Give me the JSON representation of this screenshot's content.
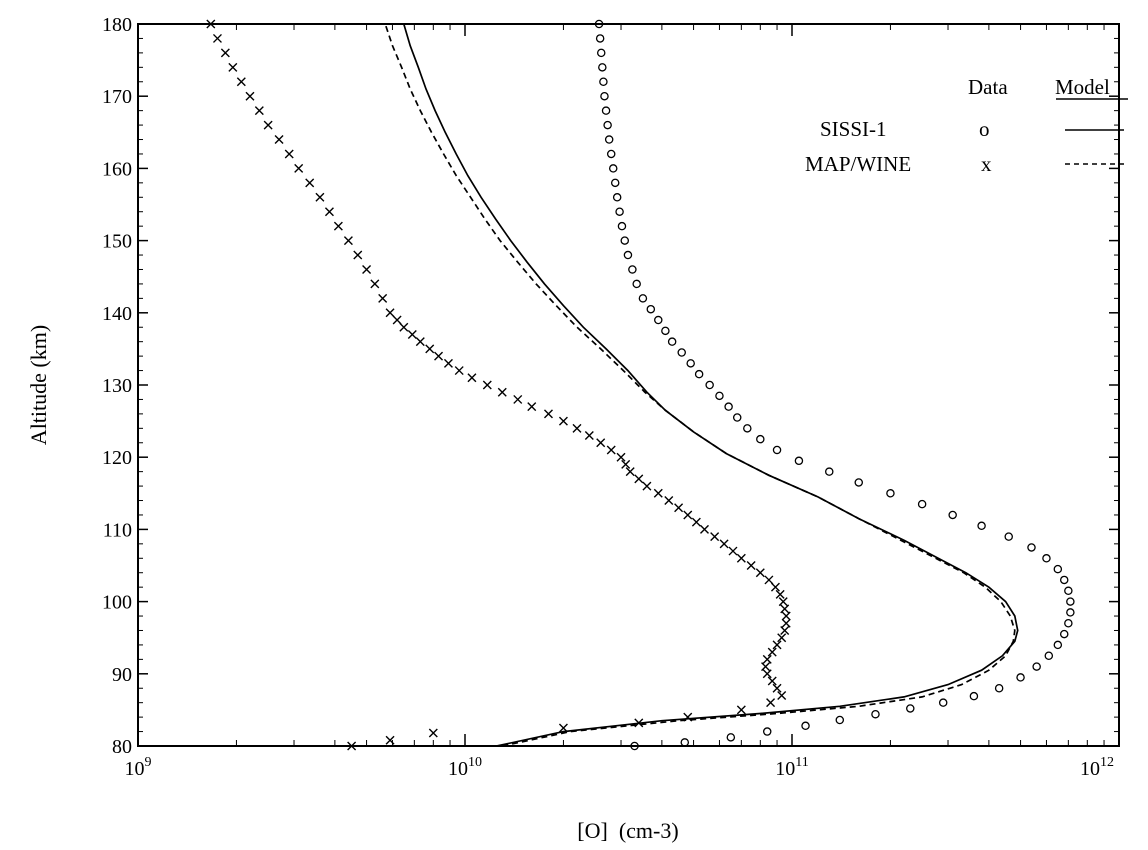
{
  "chart_data": {
    "type": "line",
    "xlabel": "[O]  (cm-3)",
    "ylabel": "Altitude (km)",
    "xscale": "log",
    "xlim": [
      1000000000.0,
      1000000000000.0
    ],
    "ylim": [
      80,
      180
    ],
    "x_tick_labels": [
      {
        "base": "10",
        "exp": "9"
      },
      {
        "base": "10",
        "exp": "10"
      },
      {
        "base": "10",
        "exp": "11"
      },
      {
        "base": "10",
        "exp": "12"
      }
    ],
    "y_ticks": [
      80,
      90,
      100,
      110,
      120,
      130,
      140,
      150,
      160,
      170,
      180
    ],
    "grid": false,
    "legend": {
      "placement": "top-right",
      "header_data": "Data",
      "header_model": "Model",
      "entries": [
        {
          "name": "SISSI-1",
          "data_symbol": "o",
          "model_style": "solid"
        },
        {
          "name": "MAP/WINE",
          "data_symbol": "x",
          "model_style": "dashed"
        }
      ]
    },
    "series": [
      {
        "name": "SISSI-1",
        "kind": "data",
        "marker": "o",
        "points": [
          [
            33000000000.0,
            80
          ],
          [
            47000000000.0,
            80.5
          ],
          [
            65000000000.0,
            81.2
          ],
          [
            84000000000.0,
            82
          ],
          [
            110000000000.0,
            82.8
          ],
          [
            140000000000.0,
            83.6
          ],
          [
            180000000000.0,
            84.4
          ],
          [
            230000000000.0,
            85.2
          ],
          [
            290000000000.0,
            86
          ],
          [
            360000000000.0,
            86.9
          ],
          [
            430000000000.0,
            88
          ],
          [
            500000000000.0,
            89.5
          ],
          [
            560000000000.0,
            91
          ],
          [
            610000000000.0,
            92.5
          ],
          [
            650000000000.0,
            94
          ],
          [
            680000000000.0,
            95.5
          ],
          [
            700000000000.0,
            97
          ],
          [
            710000000000.0,
            98.5
          ],
          [
            710000000000.0,
            100
          ],
          [
            700000000000.0,
            101.5
          ],
          [
            680000000000.0,
            103
          ],
          [
            650000000000.0,
            104.5
          ],
          [
            600000000000.0,
            106
          ],
          [
            540000000000.0,
            107.5
          ],
          [
            460000000000.0,
            109
          ],
          [
            380000000000.0,
            110.5
          ],
          [
            310000000000.0,
            112
          ],
          [
            250000000000.0,
            113.5
          ],
          [
            200000000000.0,
            115
          ],
          [
            160000000000.0,
            116.5
          ],
          [
            130000000000.0,
            118
          ],
          [
            105000000000.0,
            119.5
          ],
          [
            90000000000.0,
            121
          ],
          [
            80000000000.0,
            122.5
          ],
          [
            73000000000.0,
            124
          ],
          [
            68000000000.0,
            125.5
          ],
          [
            64000000000.0,
            127
          ],
          [
            60000000000.0,
            128.5
          ],
          [
            56000000000.0,
            130
          ],
          [
            52000000000.0,
            131.5
          ],
          [
            49000000000.0,
            133
          ],
          [
            46000000000.0,
            134.5
          ],
          [
            43000000000.0,
            136
          ],
          [
            41000000000.0,
            137.5
          ],
          [
            39000000000.0,
            139
          ],
          [
            37000000000.0,
            140.5
          ],
          [
            35000000000.0,
            142
          ],
          [
            33500000000.0,
            144
          ],
          [
            32500000000.0,
            146
          ],
          [
            31500000000.0,
            148
          ],
          [
            30800000000.0,
            150
          ],
          [
            30200000000.0,
            152
          ],
          [
            29700000000.0,
            154
          ],
          [
            29200000000.0,
            156
          ],
          [
            28800000000.0,
            158
          ],
          [
            28400000000.0,
            160
          ],
          [
            28000000000.0,
            162
          ],
          [
            27600000000.0,
            164
          ],
          [
            27300000000.0,
            166
          ],
          [
            27000000000.0,
            168
          ],
          [
            26700000000.0,
            170
          ],
          [
            26500000000.0,
            172
          ],
          [
            26300000000.0,
            174
          ],
          [
            26100000000.0,
            176
          ],
          [
            25900000000.0,
            178
          ],
          [
            25700000000.0,
            180
          ]
        ]
      },
      {
        "name": "MAP/WINE",
        "kind": "data",
        "marker": "x",
        "points": [
          [
            4500000000.0,
            80
          ],
          [
            5900000000.0,
            80.8
          ],
          [
            8000000000.0,
            81.8
          ],
          [
            20000000000.0,
            82.5
          ],
          [
            34000000000.0,
            83.2
          ],
          [
            48000000000.0,
            84
          ],
          [
            70000000000.0,
            85
          ],
          [
            86000000000.0,
            86
          ],
          [
            93000000000.0,
            87
          ],
          [
            90000000000.0,
            88
          ],
          [
            87000000000.0,
            89
          ],
          [
            84000000000.0,
            90
          ],
          [
            83000000000.0,
            91
          ],
          [
            84000000000.0,
            92
          ],
          [
            87000000000.0,
            93
          ],
          [
            90000000000.0,
            94
          ],
          [
            93000000000.0,
            95
          ],
          [
            95000000000.0,
            96
          ],
          [
            96000000000.0,
            97
          ],
          [
            96000000000.0,
            98
          ],
          [
            95000000000.0,
            99
          ],
          [
            94000000000.0,
            100
          ],
          [
            92000000000.0,
            101
          ],
          [
            89000000000.0,
            102
          ],
          [
            85000000000.0,
            103
          ],
          [
            80000000000.0,
            104
          ],
          [
            75000000000.0,
            105
          ],
          [
            70000000000.0,
            106
          ],
          [
            66000000000.0,
            107
          ],
          [
            62000000000.0,
            108
          ],
          [
            58000000000.0,
            109
          ],
          [
            54000000000.0,
            110
          ],
          [
            51000000000.0,
            111
          ],
          [
            48000000000.0,
            112
          ],
          [
            45000000000.0,
            113
          ],
          [
            42000000000.0,
            114
          ],
          [
            39000000000.0,
            115
          ],
          [
            36000000000.0,
            116
          ],
          [
            34000000000.0,
            117
          ],
          [
            32000000000.0,
            118
          ],
          [
            31000000000.0,
            119
          ],
          [
            30000000000.0,
            120
          ],
          [
            28000000000.0,
            121
          ],
          [
            26000000000.0,
            122
          ],
          [
            24000000000.0,
            123
          ],
          [
            22000000000.0,
            124
          ],
          [
            20000000000.0,
            125
          ],
          [
            18000000000.0,
            126
          ],
          [
            16000000000.0,
            127
          ],
          [
            14500000000.0,
            128
          ],
          [
            13000000000.0,
            129
          ],
          [
            11700000000.0,
            130
          ],
          [
            10500000000.0,
            131
          ],
          [
            9600000000.0,
            132
          ],
          [
            8900000000.0,
            133
          ],
          [
            8300000000.0,
            134
          ],
          [
            7800000000.0,
            135
          ],
          [
            7300000000.0,
            136
          ],
          [
            6900000000.0,
            137
          ],
          [
            6500000000.0,
            138
          ],
          [
            6200000000.0,
            139
          ],
          [
            5900000000.0,
            140
          ],
          [
            5600000000.0,
            142
          ],
          [
            5300000000.0,
            144
          ],
          [
            5000000000.0,
            146
          ],
          [
            4700000000.0,
            148
          ],
          [
            4400000000.0,
            150
          ],
          [
            4100000000.0,
            152
          ],
          [
            3850000000.0,
            154
          ],
          [
            3600000000.0,
            156
          ],
          [
            3350000000.0,
            158
          ],
          [
            3100000000.0,
            160
          ],
          [
            2900000000.0,
            162
          ],
          [
            2700000000.0,
            164
          ],
          [
            2500000000.0,
            166
          ],
          [
            2350000000.0,
            168
          ],
          [
            2200000000.0,
            170
          ],
          [
            2070000000.0,
            172
          ],
          [
            1950000000.0,
            174
          ],
          [
            1850000000.0,
            176
          ],
          [
            1750000000.0,
            178
          ],
          [
            1670000000.0,
            180
          ]
        ]
      },
      {
        "name": "SISSI-1",
        "kind": "model",
        "line": "solid",
        "points": [
          [
            12500000000.0,
            80
          ],
          [
            20000000000.0,
            82
          ],
          [
            40000000000.0,
            83.5
          ],
          [
            80000000000.0,
            84.5
          ],
          [
            140000000000.0,
            85.5
          ],
          [
            220000000000.0,
            86.8
          ],
          [
            300000000000.0,
            88.5
          ],
          [
            380000000000.0,
            90.5
          ],
          [
            440000000000.0,
            92.5
          ],
          [
            480000000000.0,
            94.5
          ],
          [
            490000000000.0,
            96
          ],
          [
            480000000000.0,
            98
          ],
          [
            450000000000.0,
            100
          ],
          [
            400000000000.0,
            102
          ],
          [
            340000000000.0,
            104
          ],
          [
            280000000000.0,
            106
          ],
          [
            220000000000.0,
            108.5
          ],
          [
            160000000000.0,
            111.5
          ],
          [
            120000000000.0,
            114.5
          ],
          [
            85000000000.0,
            117.5
          ],
          [
            63000000000.0,
            120.5
          ],
          [
            50000000000.0,
            123.5
          ],
          [
            41000000000.0,
            126.5
          ],
          [
            36000000000.0,
            129
          ],
          [
            31500000000.0,
            132
          ],
          [
            27000000000.0,
            135
          ],
          [
            23000000000.0,
            138
          ],
          [
            20000000000.0,
            141
          ],
          [
            17500000000.0,
            144
          ],
          [
            15500000000.0,
            147
          ],
          [
            13800000000.0,
            150
          ],
          [
            12400000000.0,
            153
          ],
          [
            11200000000.0,
            156
          ],
          [
            10200000000.0,
            159
          ],
          [
            9400000000.0,
            162
          ],
          [
            8700000000.0,
            165
          ],
          [
            8100000000.0,
            168
          ],
          [
            7600000000.0,
            171
          ],
          [
            7200000000.0,
            174
          ],
          [
            6800000000.0,
            177
          ],
          [
            6500000000.0,
            180
          ]
        ]
      },
      {
        "name": "MAP/WINE",
        "kind": "model",
        "line": "dashed",
        "points": [
          [
            13000000000.0,
            80
          ],
          [
            21000000000.0,
            82
          ],
          [
            45000000000.0,
            83.5
          ],
          [
            90000000000.0,
            84.5
          ],
          [
            160000000000.0,
            85.5
          ],
          [
            250000000000.0,
            86.8
          ],
          [
            330000000000.0,
            88.5
          ],
          [
            400000000000.0,
            90.5
          ],
          [
            450000000000.0,
            92.5
          ],
          [
            475000000000.0,
            94.5
          ],
          [
            480000000000.0,
            96
          ],
          [
            465000000000.0,
            98
          ],
          [
            435000000000.0,
            100
          ],
          [
            390000000000.0,
            102
          ],
          [
            335000000000.0,
            104
          ],
          [
            275000000000.0,
            106
          ],
          [
            215000000000.0,
            108.5
          ],
          [
            160000000000.0,
            111.5
          ],
          [
            120000000000.0,
            114.5
          ],
          [
            85000000000.0,
            117.5
          ],
          [
            63000000000.0,
            120.5
          ],
          [
            50000000000.0,
            123.5
          ],
          [
            41000000000.0,
            126.5
          ],
          [
            35500000000.0,
            129
          ],
          [
            30500000000.0,
            132
          ],
          [
            26000000000.0,
            135
          ],
          [
            22000000000.0,
            138
          ],
          [
            19000000000.0,
            141
          ],
          [
            16500000000.0,
            144
          ],
          [
            14500000000.0,
            147
          ],
          [
            12800000000.0,
            150
          ],
          [
            11500000000.0,
            153
          ],
          [
            10400000000.0,
            156
          ],
          [
            9400000000.0,
            159
          ],
          [
            8600000000.0,
            162
          ],
          [
            7900000000.0,
            165
          ],
          [
            7300000000.0,
            168
          ],
          [
            6800000000.0,
            171
          ],
          [
            6400000000.0,
            174
          ],
          [
            6000000000.0,
            177
          ],
          [
            5700000000.0,
            180
          ]
        ]
      }
    ]
  }
}
